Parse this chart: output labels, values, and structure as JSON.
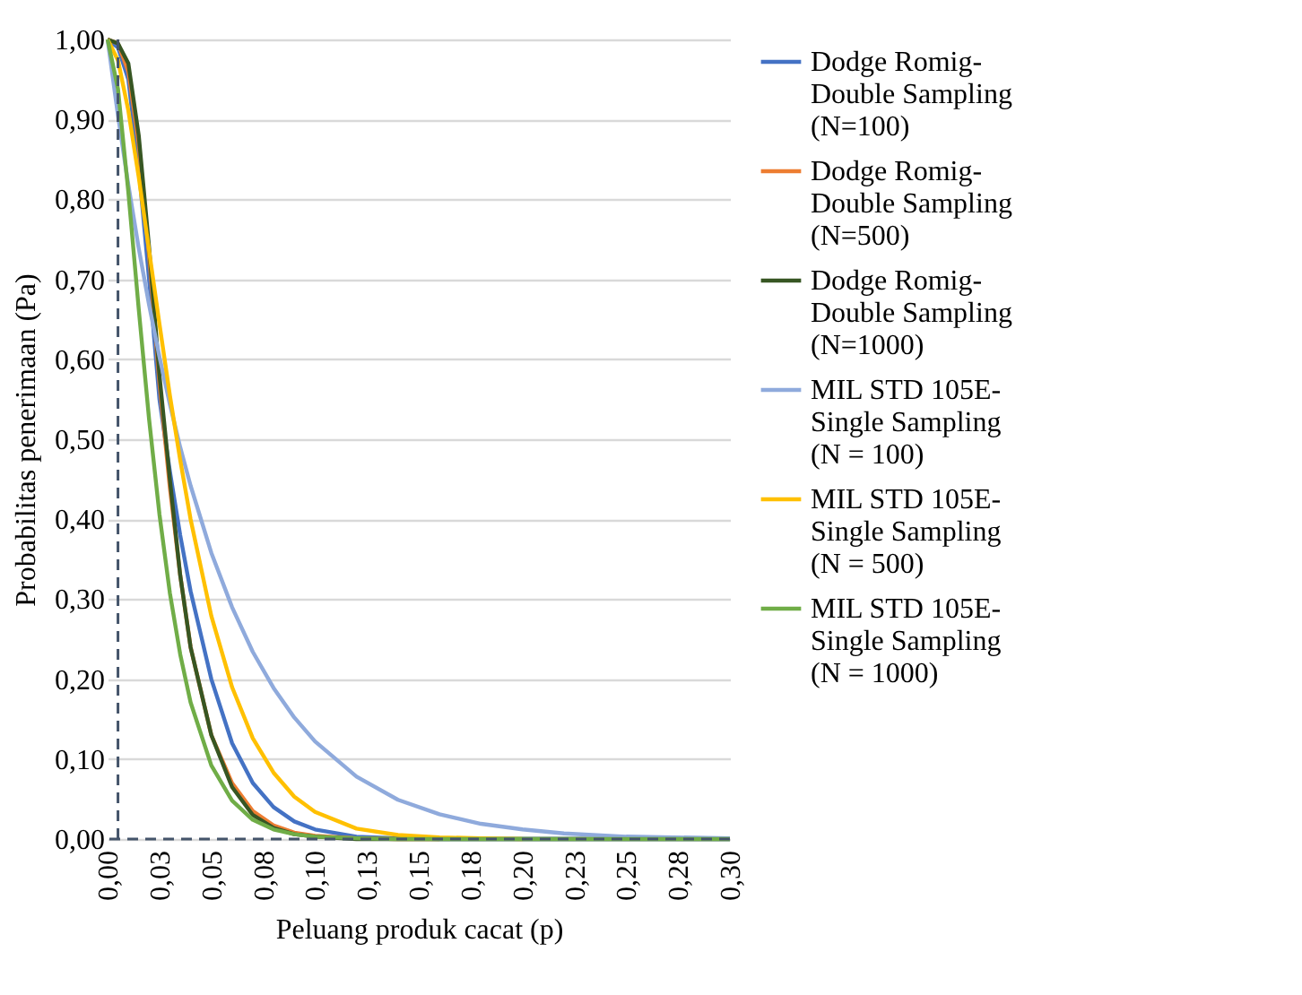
{
  "chart_data": {
    "type": "line",
    "xlabel": "Peluang produk cacat (p)",
    "ylabel": "Probabilitas penerimaan (Pa)",
    "x": [
      0,
      0.005,
      0.01,
      0.015,
      0.02,
      0.025,
      0.03,
      0.035,
      0.04,
      0.05,
      0.06,
      0.07,
      0.08,
      0.09,
      0.1,
      0.12,
      0.14,
      0.16,
      0.18,
      0.2,
      0.22,
      0.25,
      0.3
    ],
    "series": [
      {
        "name": "Dodge Romig-Double Sampling (N=100)",
        "color": "#4472c4",
        "values": [
          1,
          0.99,
          0.95,
          0.84,
          0.7,
          0.55,
          0.46,
          0.38,
          0.31,
          0.2,
          0.12,
          0.07,
          0.04,
          0.022,
          0.012,
          0.003,
          0.001,
          0,
          0,
          0,
          0,
          0,
          0
        ]
      },
      {
        "name": "Dodge Romig-Double Sampling (N=500)",
        "color": "#ed7d31",
        "values": [
          1,
          0.995,
          0.96,
          0.87,
          0.73,
          0.57,
          0.44,
          0.33,
          0.24,
          0.13,
          0.07,
          0.035,
          0.017,
          0.008,
          0.004,
          0.001,
          0,
          0,
          null,
          null,
          null,
          null,
          null
        ]
      },
      {
        "name": "Dodge Romig-Double Sampling (N=1000)",
        "color": "#375623",
        "values": [
          1,
          0.995,
          0.97,
          0.88,
          0.74,
          0.58,
          0.45,
          0.33,
          0.24,
          0.13,
          0.065,
          0.03,
          0.014,
          0.006,
          0.003,
          0,
          0,
          0,
          0,
          0,
          0,
          0,
          0
        ]
      },
      {
        "name": "MIL STD 105E-Single Sampling (N = 100)",
        "color": "#8faadc",
        "values": [
          1,
          0.905,
          0.818,
          0.739,
          0.668,
          0.603,
          0.544,
          0.49,
          0.442,
          0.358,
          0.29,
          0.234,
          0.189,
          0.152,
          0.122,
          0.078,
          0.049,
          0.031,
          0.019,
          0.012,
          0.007,
          0.003,
          0.001
        ]
      },
      {
        "name": "MIL STD 105E-Single Sampling (N = 500)",
        "color": "#ffc000",
        "values": [
          1,
          0.974,
          0.911,
          0.828,
          0.736,
          0.644,
          0.555,
          0.474,
          0.4,
          0.279,
          0.19,
          0.126,
          0.083,
          0.053,
          0.034,
          0.013,
          0.005,
          0.002,
          0.001,
          0,
          null,
          null,
          null
        ]
      },
      {
        "name": "MIL STD 105E-Single Sampling (N = 1000)",
        "color": "#70ad47",
        "values": [
          1,
          0.938,
          0.809,
          0.663,
          0.525,
          0.406,
          0.308,
          0.231,
          0.171,
          0.092,
          0.048,
          0.024,
          0.012,
          0.006,
          0.003,
          0.001,
          0,
          0,
          0,
          0,
          0,
          0,
          0
        ]
      }
    ],
    "xlim": [
      0,
      0.3
    ],
    "xticks": [
      {
        "value": 0,
        "label": "0,00"
      },
      {
        "value": 0.025,
        "label": "0,03"
      },
      {
        "value": 0.05,
        "label": "0,05"
      },
      {
        "value": 0.075,
        "label": "0,08"
      },
      {
        "value": 0.1,
        "label": "0,10"
      },
      {
        "value": 0.125,
        "label": "0,13"
      },
      {
        "value": 0.15,
        "label": "0,15"
      },
      {
        "value": 0.175,
        "label": "0,18"
      },
      {
        "value": 0.2,
        "label": "0,20"
      },
      {
        "value": 0.225,
        "label": "0,23"
      },
      {
        "value": 0.25,
        "label": "0,25"
      },
      {
        "value": 0.275,
        "label": "0,28"
      },
      {
        "value": 0.3,
        "label": "0,30"
      }
    ],
    "ylim": [
      0,
      1
    ],
    "yticks": [
      {
        "value": 0,
        "label": "0,00"
      },
      {
        "value": 0.1,
        "label": "0,10"
      },
      {
        "value": 0.2,
        "label": "0,20"
      },
      {
        "value": 0.3,
        "label": "0,30"
      },
      {
        "value": 0.4,
        "label": "0,40"
      },
      {
        "value": 0.5,
        "label": "0,50"
      },
      {
        "value": 0.6,
        "label": "0,60"
      },
      {
        "value": 0.7,
        "label": "0,70"
      },
      {
        "value": 0.8,
        "label": "0,80"
      },
      {
        "value": 0.9,
        "label": "0,90"
      },
      {
        "value": 1,
        "label": "1,00"
      }
    ],
    "ref_lines": [
      {
        "axis": "x",
        "value": 0.005,
        "color": "#44546a",
        "line_style": "dashed"
      },
      {
        "axis": "y",
        "value": 0,
        "color": "#44546a",
        "line_style": "dashed"
      }
    ],
    "grid": "y",
    "legend": "right",
    "marker": "none",
    "line_style": "solid"
  }
}
